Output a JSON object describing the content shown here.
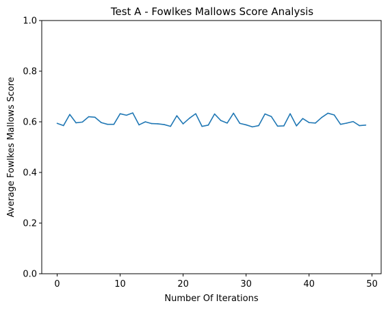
{
  "chart_data": {
    "type": "line",
    "title": "Test A - Fowlkes Mallows Score Analysis",
    "xlabel": "Number Of Iterations",
    "ylabel": "Average Fowlkes Mallows Score",
    "xlim": [
      -2.45,
      51.45
    ],
    "ylim": [
      0.0,
      1.0
    ],
    "xticks": [
      0,
      10,
      20,
      30,
      40,
      50
    ],
    "yticks": [
      0.0,
      0.2,
      0.4,
      0.6,
      0.8,
      1.0
    ],
    "xtick_labels": [
      "0",
      "10",
      "20",
      "30",
      "40",
      "50"
    ],
    "ytick_labels": [
      "0.0",
      "0.2",
      "0.4",
      "0.6",
      "0.8",
      "1.0"
    ],
    "grid": false,
    "series": [
      {
        "color": "#1f77b4",
        "x": [
          0,
          1,
          2,
          3,
          4,
          5,
          6,
          7,
          8,
          9,
          10,
          11,
          12,
          13,
          14,
          15,
          16,
          17,
          18,
          19,
          20,
          21,
          22,
          23,
          24,
          25,
          26,
          27,
          28,
          29,
          30,
          31,
          32,
          33,
          34,
          35,
          36,
          37,
          38,
          39,
          40,
          41,
          42,
          43,
          44,
          45,
          46,
          47,
          48,
          49
        ],
        "y": [
          0.594,
          0.585,
          0.629,
          0.596,
          0.599,
          0.62,
          0.618,
          0.597,
          0.59,
          0.59,
          0.632,
          0.626,
          0.635,
          0.588,
          0.6,
          0.593,
          0.592,
          0.589,
          0.582,
          0.624,
          0.592,
          0.614,
          0.632,
          0.582,
          0.587,
          0.631,
          0.605,
          0.595,
          0.634,
          0.594,
          0.588,
          0.58,
          0.585,
          0.631,
          0.621,
          0.583,
          0.584,
          0.632,
          0.584,
          0.613,
          0.597,
          0.595,
          0.617,
          0.634,
          0.627,
          0.59,
          0.595,
          0.601,
          0.585,
          0.587
        ]
      }
    ]
  }
}
